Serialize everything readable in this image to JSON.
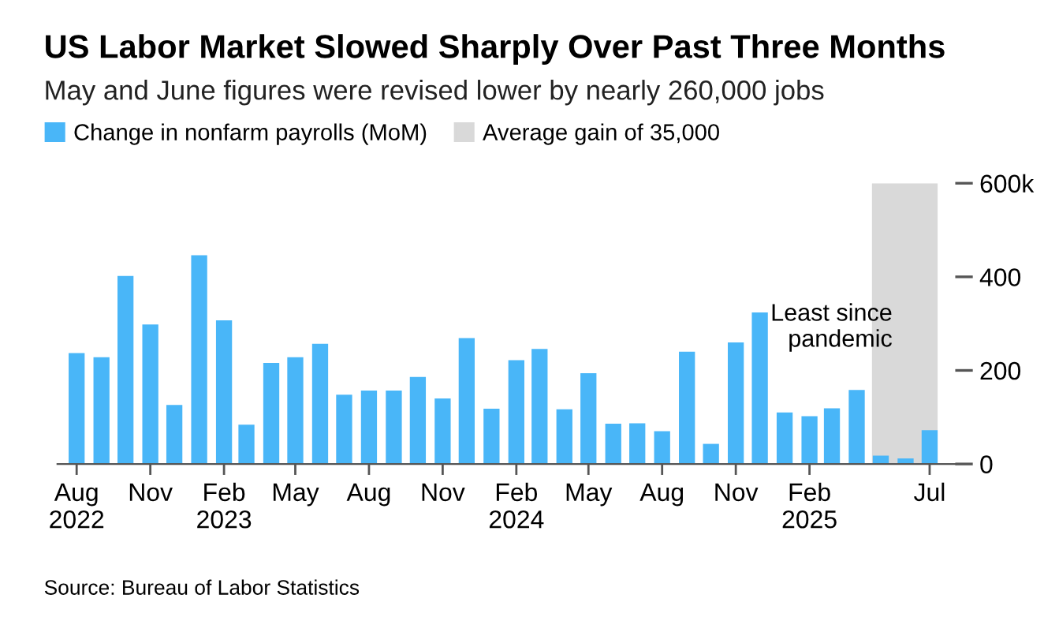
{
  "chart_data": {
    "type": "bar",
    "title": "US Labor Market Slowed Sharply Over Past Three Months",
    "subtitle": "May and June figures were revised lower by nearly 260,000 jobs",
    "x": [
      "2022-08",
      "2022-09",
      "2022-10",
      "2022-11",
      "2022-12",
      "2023-01",
      "2023-02",
      "2023-03",
      "2023-04",
      "2023-05",
      "2023-06",
      "2023-07",
      "2023-08",
      "2023-09",
      "2023-10",
      "2023-11",
      "2023-12",
      "2024-01",
      "2024-02",
      "2024-03",
      "2024-04",
      "2024-05",
      "2024-06",
      "2024-07",
      "2024-08",
      "2024-09",
      "2024-10",
      "2024-11",
      "2024-12",
      "2025-01",
      "2025-02",
      "2025-03",
      "2025-04",
      "2025-05",
      "2025-06",
      "2025-07"
    ],
    "series": [
      {
        "name": "Change in nonfarm payrolls (MoM)",
        "color": "#49b6f8",
        "values": [
          237,
          228,
          402,
          298,
          126,
          446,
          307,
          84,
          216,
          228,
          257,
          148,
          157,
          157,
          186,
          140,
          269,
          118,
          222,
          246,
          117,
          194,
          86,
          87,
          70,
          240,
          43,
          260,
          324,
          110,
          102,
          119,
          158,
          18,
          12,
          72
        ]
      }
    ],
    "xlim": [
      "2022-07-08",
      "2025-08-02"
    ],
    "xticks": [
      {
        "value": "2022-08",
        "label": "Aug\n2022"
      },
      {
        "value": "2022-11",
        "label": "Nov"
      },
      {
        "value": "2023-02",
        "label": "Feb\n2023"
      },
      {
        "value": "2023-05",
        "label": "May"
      },
      {
        "value": "2023-08",
        "label": "Aug"
      },
      {
        "value": "2023-11",
        "label": "Nov"
      },
      {
        "value": "2024-02",
        "label": "Feb\n2024"
      },
      {
        "value": "2024-05",
        "label": "May"
      },
      {
        "value": "2024-08",
        "label": "Aug"
      },
      {
        "value": "2024-11",
        "label": "Nov"
      },
      {
        "value": "2025-02",
        "label": "Feb\n2025"
      },
      {
        "value": "2025-07",
        "label": "Jul"
      }
    ],
    "ylim": [
      0,
      600
    ],
    "yticks": [
      {
        "value": 0,
        "label": "0"
      },
      {
        "value": 200,
        "label": "200"
      },
      {
        "value": 400,
        "label": "400"
      },
      {
        "value": 600,
        "label": "600k"
      }
    ],
    "bands": [
      {
        "axis": "x",
        "from": "2025-04-20",
        "to": "2025-07-11",
        "label": "Average gain of 35,000",
        "color": "#d9d9d9"
      }
    ],
    "annotations": [
      "Least since\npandemic",
      "Source: Bureau of Labor Statistics"
    ],
    "legend": "top left",
    "grid": false
  }
}
